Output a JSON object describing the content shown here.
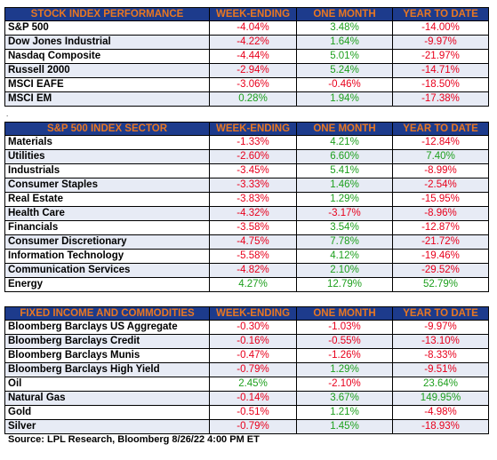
{
  "tables": [
    {
      "headers": [
        "STOCK INDEX PERFORMANCE",
        "WEEK-ENDING",
        "ONE MONTH",
        "YEAR TO DATE"
      ],
      "rows": [
        {
          "name": "S&P 500",
          "week": "-4.04%",
          "month": "3.48%",
          "ytd": "-14.00%"
        },
        {
          "name": "Dow Jones Industrial",
          "week": "-4.22%",
          "month": "1.64%",
          "ytd": "-9.97%"
        },
        {
          "name": "Nasdaq Composite",
          "week": "-4.44%",
          "month": "5.01%",
          "ytd": "-21.97%"
        },
        {
          "name": "Russell 2000",
          "week": "-2.94%",
          "month": "5.24%",
          "ytd": "-14.71%"
        },
        {
          "name": "MSCI EAFE",
          "week": "-3.06%",
          "month": "-0.46%",
          "ytd": "-18.50%"
        },
        {
          "name": "MSCI EM",
          "week": "0.28%",
          "month": "1.94%",
          "ytd": "-17.38%"
        }
      ]
    },
    {
      "headers": [
        "S&P 500 INDEX SECTOR",
        "WEEK-ENDING",
        "ONE MONTH",
        "YEAR TO DATE"
      ],
      "rows": [
        {
          "name": "Materials",
          "week": "-1.33%",
          "month": "4.21%",
          "ytd": "-12.84%"
        },
        {
          "name": "Utilities",
          "week": "-2.60%",
          "month": "6.60%",
          "ytd": "7.40%"
        },
        {
          "name": "Industrials",
          "week": "-3.45%",
          "month": "5.41%",
          "ytd": "-8.99%"
        },
        {
          "name": "Consumer Staples",
          "week": "-3.33%",
          "month": "1.46%",
          "ytd": "-2.54%"
        },
        {
          "name": "Real Estate",
          "week": "-3.83%",
          "month": "1.29%",
          "ytd": "-15.95%"
        },
        {
          "name": "Health Care",
          "week": "-4.32%",
          "month": "-3.17%",
          "ytd": "-8.96%"
        },
        {
          "name": "Financials",
          "week": "-3.58%",
          "month": "3.54%",
          "ytd": "-12.87%"
        },
        {
          "name": "Consumer Discretionary",
          "week": "-4.75%",
          "month": "7.78%",
          "ytd": "-21.72%"
        },
        {
          "name": "Information Technology",
          "week": "-5.58%",
          "month": "4.12%",
          "ytd": "-19.46%"
        },
        {
          "name": "Communication Services",
          "week": "-4.82%",
          "month": "2.10%",
          "ytd": "-29.52%"
        },
        {
          "name": "Energy",
          "week": "4.27%",
          "month": "12.79%",
          "ytd": "52.79%"
        }
      ]
    },
    {
      "headers": [
        "FIXED INCOME AND COMMODITIES",
        "WEEK-ENDING",
        "ONE MONTH",
        "YEAR TO DATE"
      ],
      "rows": [
        {
          "name": "Bloomberg Barclays US Aggregate",
          "week": "-0.30%",
          "month": "-1.03%",
          "ytd": "-9.97%"
        },
        {
          "name": "Bloomberg Barclays Credit",
          "week": "-0.16%",
          "month": "-0.55%",
          "ytd": "-13.10%"
        },
        {
          "name": "Bloomberg Barclays Munis",
          "week": "-0.47%",
          "month": "-1.26%",
          "ytd": "-8.33%"
        },
        {
          "name": "Bloomberg Barclays High Yield",
          "week": "-0.79%",
          "month": "1.29%",
          "ytd": "-9.51%"
        },
        {
          "name": "Oil",
          "week": "2.45%",
          "month": "-2.10%",
          "ytd": "23.64%"
        },
        {
          "name": "Natural Gas",
          "week": "-0.14%",
          "month": "3.67%",
          "ytd": "149.95%"
        },
        {
          "name": "Gold",
          "week": "-0.51%",
          "month": "1.21%",
          "ytd": "-4.98%"
        },
        {
          "name": "Silver",
          "week": "-0.79%",
          "month": "1.45%",
          "ytd": "-18.93%"
        }
      ]
    }
  ],
  "separator": ".",
  "source": "Source: LPL Research, Bloomberg 8/26/22 4:00 PM ET",
  "colors": {
    "header_bg": "#1d3b8c",
    "header_text": "#e87722",
    "negative": "#e8001c",
    "positive": "#1ea01e",
    "highlight_row": "#e7ebf5"
  }
}
